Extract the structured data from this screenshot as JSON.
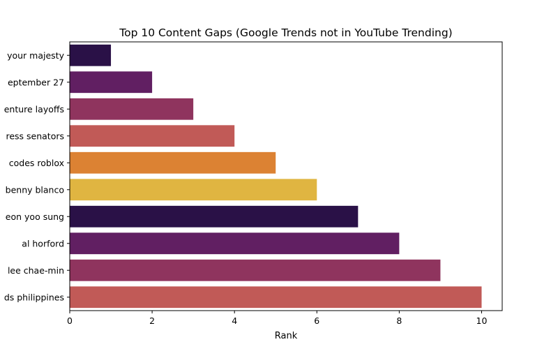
{
  "chart_data": {
    "type": "bar",
    "orientation": "horizontal",
    "title": "Top 10 Content Gaps (Google Trends not in YouTube Trending)",
    "xlabel": "Rank",
    "ylabel": "",
    "xlim": [
      0,
      10.5
    ],
    "x_ticks": [
      0,
      2,
      4,
      6,
      8,
      10
    ],
    "grid": false,
    "categories": [
      "your majesty",
      "eptember 27",
      "enture layoffs",
      "ress senators",
      "codes roblox",
      "benny blanco",
      "eon yoo sung",
      "al horford",
      "lee chae-min",
      "ds philippines"
    ],
    "values": [
      1,
      2,
      3,
      4,
      5,
      6,
      7,
      8,
      9,
      10
    ],
    "colors": [
      "#2a1147",
      "#611f62",
      "#8f345e",
      "#c15a57",
      "#dc8233",
      "#e0b541",
      "#2a1147",
      "#611f62",
      "#8f345e",
      "#c15a57"
    ]
  }
}
